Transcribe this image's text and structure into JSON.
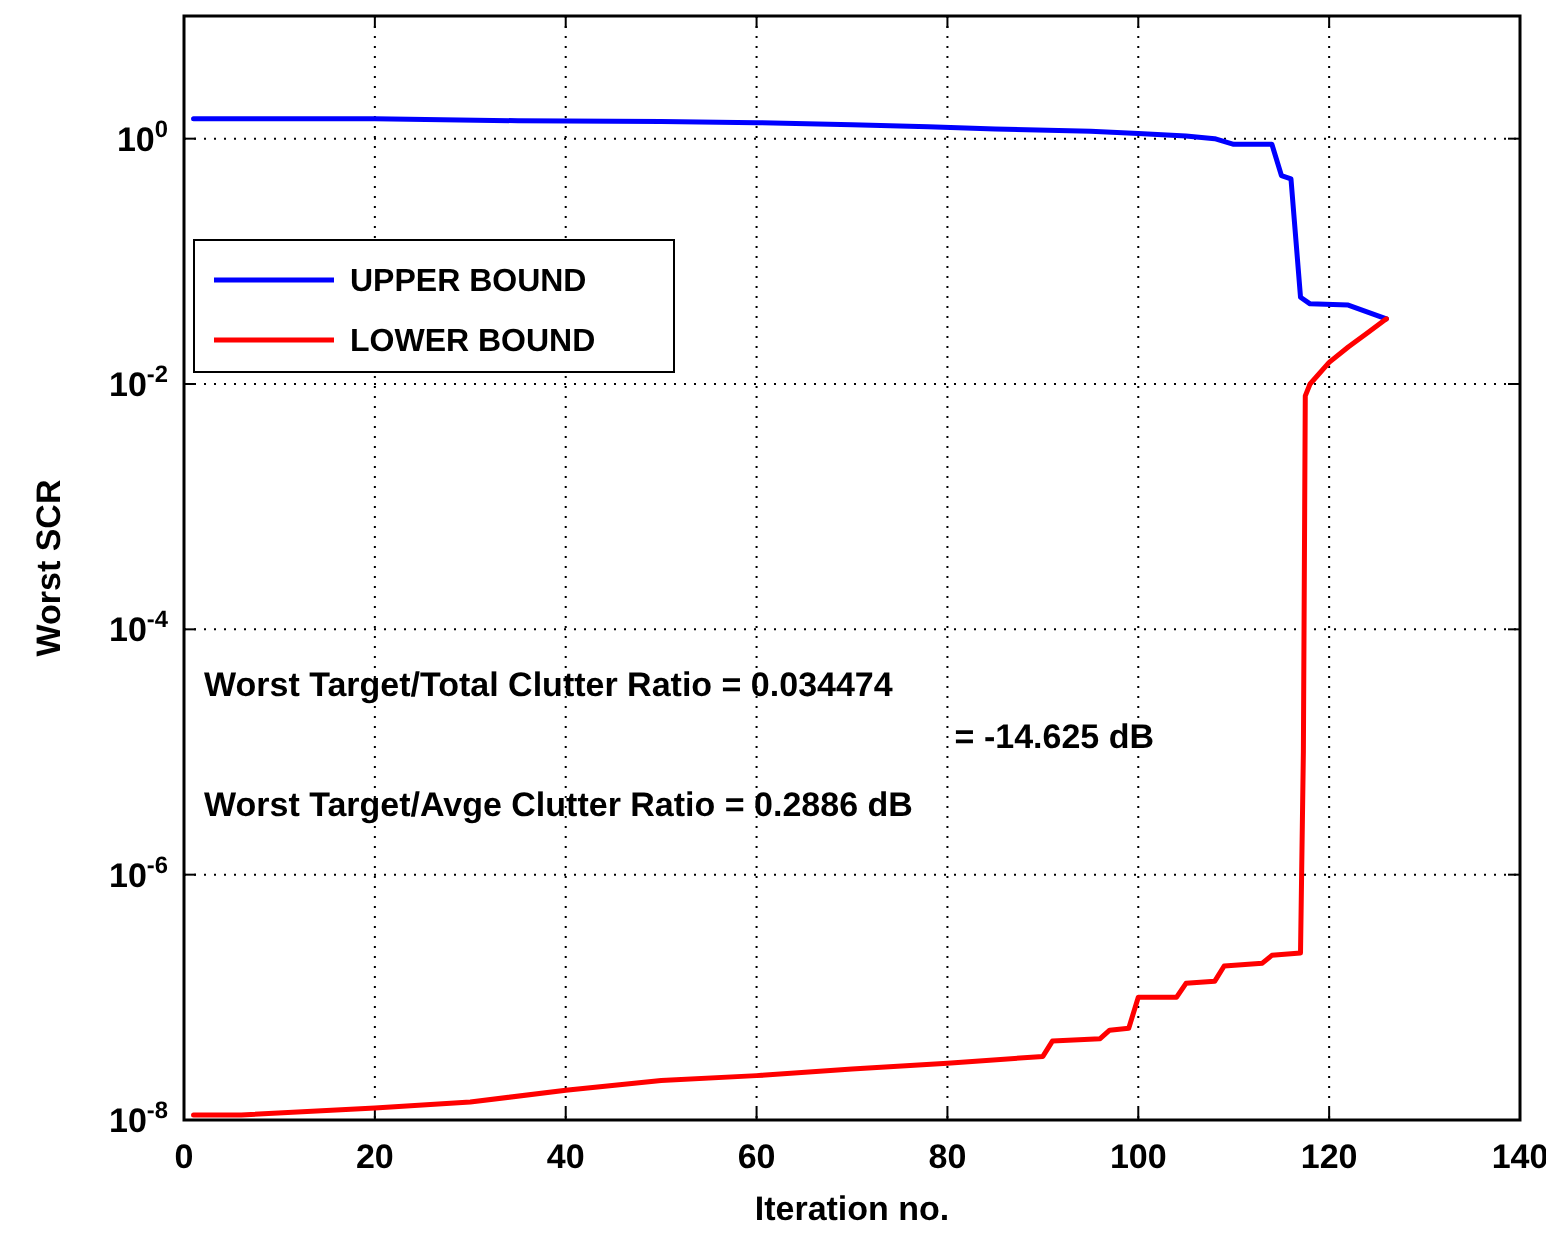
{
  "chart_data": {
    "type": "line",
    "xlabel": "Iteration no.",
    "ylabel": "Worst SCR",
    "log": "y",
    "grid": true,
    "legend": "top left",
    "line_style": "solid",
    "xlim": [
      0,
      140
    ],
    "xticks": [
      0,
      20,
      40,
      60,
      80,
      100,
      120,
      140
    ],
    "ylim": [
      1e-08,
      10
    ],
    "yticks": [
      {
        "value": 1e-08,
        "label": "10$^{-8}$"
      },
      {
        "value": 1e-06,
        "label": "10$^{-6}$"
      },
      {
        "value": 0.0001,
        "label": "10$^{-4}$"
      },
      {
        "value": 0.01,
        "label": "10$^{-2}$"
      },
      {
        "value": 1,
        "label": "10$^{0}$"
      }
    ],
    "series": [
      {
        "name": "UPPER BOUND",
        "color": "#0000ff",
        "x": [
          1,
          20,
          35,
          50,
          60,
          70,
          78,
          85,
          95,
          100,
          105,
          108,
          110,
          114,
          115,
          116,
          117,
          118,
          122,
          126
        ],
        "values": [
          1.45,
          1.45,
          1.4,
          1.38,
          1.35,
          1.3,
          1.25,
          1.2,
          1.15,
          1.1,
          1.05,
          1.0,
          0.9,
          0.9,
          0.5,
          0.47,
          0.051,
          0.045,
          0.044,
          0.034
        ]
      },
      {
        "name": "LOWER BOUND",
        "color": "#ff0000",
        "x": [
          1,
          6,
          20,
          30,
          40,
          50,
          60,
          70,
          80,
          90,
          91,
          96,
          97,
          99,
          100,
          104,
          105,
          108,
          109,
          113,
          114,
          117,
          117.3,
          117.5,
          118,
          120,
          122,
          124,
          126
        ],
        "values": [
          1.1e-08,
          1.1e-08,
          1.25e-08,
          1.4e-08,
          1.75e-08,
          2.1e-08,
          2.3e-08,
          2.6e-08,
          2.9e-08,
          3.3e-08,
          4.4e-08,
          4.6e-08,
          5.4e-08,
          5.6e-08,
          1e-07,
          1e-07,
          1.3e-07,
          1.35e-07,
          1.8e-07,
          1.9e-07,
          2.2e-07,
          2.3e-07,
          1e-05,
          0.008,
          0.01,
          0.015,
          0.02,
          0.026,
          0.034
        ]
      }
    ],
    "annotations": [
      "Worst Target/Total Clutter Ratio = 0.034474",
      "= -14.625 dB",
      "Worst Target/Avge Clutter Ratio = 0.2886 dB"
    ]
  }
}
